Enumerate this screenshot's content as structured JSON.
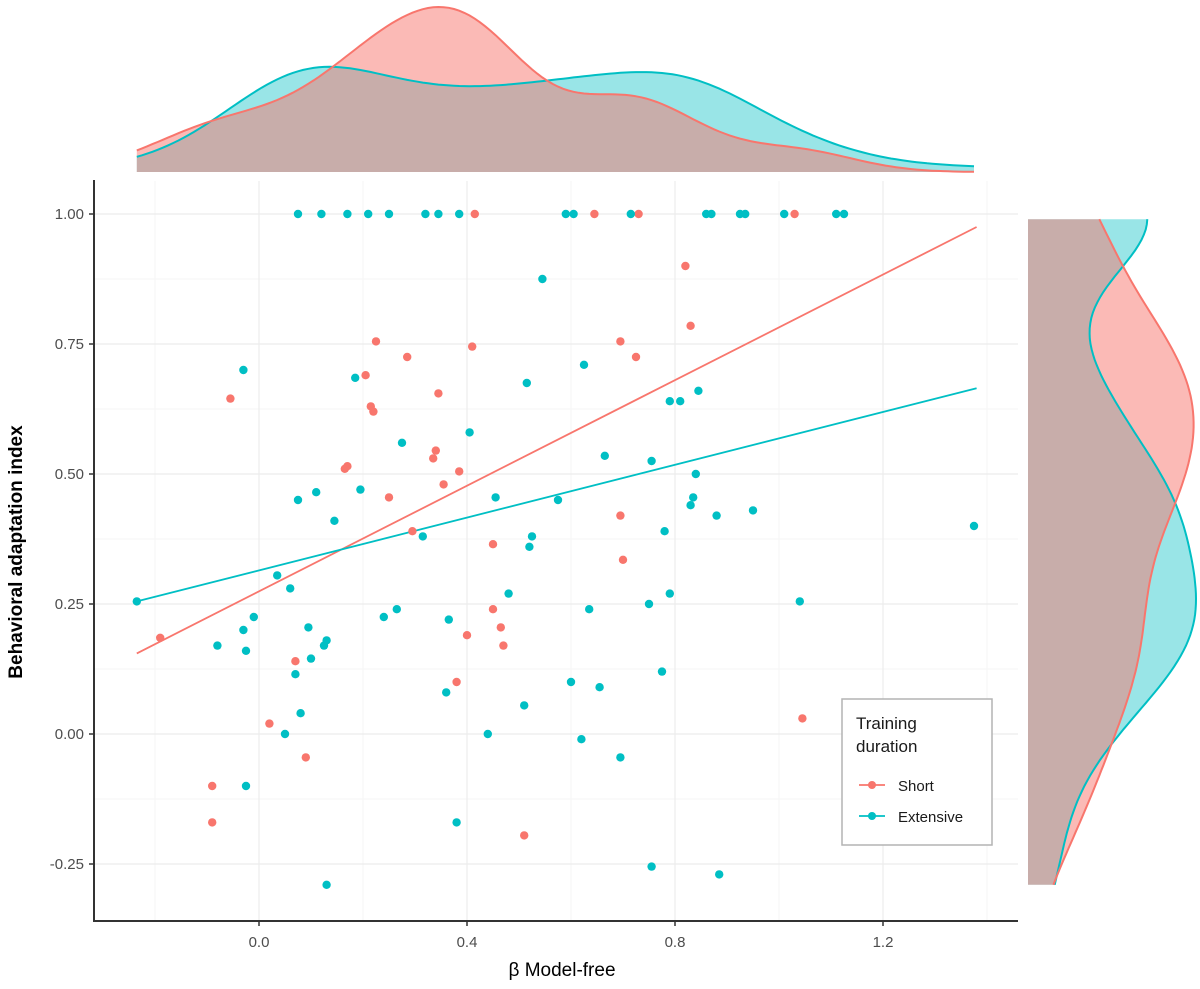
{
  "chart_data": {
    "type": "scatter",
    "title": "",
    "xlabel": "β  Model-free",
    "ylabel": "Behavioral adaptation index",
    "xlim": [
      -0.32,
      1.46
    ],
    "ylim": [
      -0.38,
      1.07
    ],
    "x_ticks": [
      0.0,
      0.4,
      0.8,
      1.2
    ],
    "x_tick_labels": [
      "0.0",
      "0.4",
      "0.8",
      "1.2"
    ],
    "y_ticks": [
      -0.25,
      0.0,
      0.25,
      0.5,
      0.75,
      1.0
    ],
    "y_tick_labels": [
      "-0.25",
      "0.00",
      "0.25",
      "0.50",
      "0.75",
      "1.00"
    ],
    "grid": true,
    "legend": {
      "title": "Training duration",
      "title_lines": [
        "Training",
        "duration"
      ],
      "placement": "bottom-right",
      "entries": [
        {
          "name": "Short",
          "color": "#F8766D"
        },
        {
          "name": "Extensive",
          "color": "#00BFC4"
        }
      ]
    },
    "series": [
      {
        "name": "Short",
        "color": "#F8766D",
        "fit_line": {
          "x": [
            -0.235,
            1.38
          ],
          "y": [
            0.155,
            0.975
          ]
        },
        "points": [
          [
            0.415,
            1.0
          ],
          [
            0.645,
            1.0
          ],
          [
            0.73,
            1.0
          ],
          [
            1.03,
            1.0
          ],
          [
            -0.19,
            0.185
          ],
          [
            -0.055,
            0.645
          ],
          [
            -0.09,
            -0.1
          ],
          [
            -0.09,
            -0.17
          ],
          [
            0.02,
            0.02
          ],
          [
            0.09,
            -0.045
          ],
          [
            0.07,
            0.14
          ],
          [
            0.225,
            0.755
          ],
          [
            0.205,
            0.69
          ],
          [
            0.215,
            0.63
          ],
          [
            0.22,
            0.62
          ],
          [
            0.285,
            0.725
          ],
          [
            0.17,
            0.515
          ],
          [
            0.165,
            0.51
          ],
          [
            0.25,
            0.455
          ],
          [
            0.295,
            0.39
          ],
          [
            0.335,
            0.53
          ],
          [
            0.34,
            0.545
          ],
          [
            0.345,
            0.655
          ],
          [
            0.355,
            0.48
          ],
          [
            0.385,
            0.505
          ],
          [
            0.41,
            0.745
          ],
          [
            0.38,
            0.1
          ],
          [
            0.4,
            0.19
          ],
          [
            0.45,
            0.365
          ],
          [
            0.45,
            0.24
          ],
          [
            0.465,
            0.205
          ],
          [
            0.47,
            0.17
          ],
          [
            0.51,
            -0.195
          ],
          [
            0.695,
            0.755
          ],
          [
            0.725,
            0.725
          ],
          [
            0.695,
            0.42
          ],
          [
            0.7,
            0.335
          ],
          [
            0.82,
            0.9
          ],
          [
            0.83,
            0.785
          ],
          [
            1.045,
            0.03
          ]
        ]
      },
      {
        "name": "Extensive",
        "color": "#00BFC4",
        "fit_line": {
          "x": [
            -0.235,
            1.38
          ],
          "y": [
            0.255,
            0.665
          ]
        },
        "points": [
          [
            0.075,
            1.0
          ],
          [
            0.12,
            1.0
          ],
          [
            0.17,
            1.0
          ],
          [
            0.21,
            1.0
          ],
          [
            0.25,
            1.0
          ],
          [
            0.32,
            1.0
          ],
          [
            0.345,
            1.0
          ],
          [
            0.385,
            1.0
          ],
          [
            0.59,
            1.0
          ],
          [
            0.605,
            1.0
          ],
          [
            0.715,
            1.0
          ],
          [
            0.86,
            1.0
          ],
          [
            0.87,
            1.0
          ],
          [
            0.925,
            1.0
          ],
          [
            0.935,
            1.0
          ],
          [
            1.01,
            1.0
          ],
          [
            1.11,
            1.0
          ],
          [
            1.125,
            1.0
          ],
          [
            -0.235,
            0.255
          ],
          [
            -0.08,
            0.17
          ],
          [
            -0.03,
            0.7
          ],
          [
            -0.03,
            0.2
          ],
          [
            -0.025,
            0.16
          ],
          [
            -0.01,
            0.225
          ],
          [
            -0.025,
            -0.1
          ],
          [
            0.035,
            0.305
          ],
          [
            0.06,
            0.28
          ],
          [
            0.07,
            0.115
          ],
          [
            0.075,
            0.45
          ],
          [
            0.08,
            0.04
          ],
          [
            0.05,
            0.0
          ],
          [
            0.095,
            0.205
          ],
          [
            0.1,
            0.145
          ],
          [
            0.11,
            0.465
          ],
          [
            0.125,
            0.17
          ],
          [
            0.13,
            0.18
          ],
          [
            0.145,
            0.41
          ],
          [
            0.13,
            -0.29
          ],
          [
            0.185,
            0.685
          ],
          [
            0.195,
            0.47
          ],
          [
            0.24,
            0.225
          ],
          [
            0.265,
            0.24
          ],
          [
            0.275,
            0.56
          ],
          [
            0.315,
            0.38
          ],
          [
            0.36,
            0.08
          ],
          [
            0.365,
            0.22
          ],
          [
            0.38,
            -0.17
          ],
          [
            0.405,
            0.58
          ],
          [
            0.44,
            0.0
          ],
          [
            0.455,
            0.455
          ],
          [
            0.48,
            0.27
          ],
          [
            0.51,
            0.055
          ],
          [
            0.515,
            0.675
          ],
          [
            0.52,
            0.36
          ],
          [
            0.525,
            0.38
          ],
          [
            0.545,
            0.875
          ],
          [
            0.575,
            0.45
          ],
          [
            0.6,
            0.1
          ],
          [
            0.62,
            -0.01
          ],
          [
            0.625,
            0.71
          ],
          [
            0.635,
            0.24
          ],
          [
            0.655,
            0.09
          ],
          [
            0.665,
            0.535
          ],
          [
            0.695,
            -0.045
          ],
          [
            0.75,
            0.25
          ],
          [
            0.755,
            0.525
          ],
          [
            0.755,
            -0.255
          ],
          [
            0.775,
            0.12
          ],
          [
            0.78,
            0.39
          ],
          [
            0.79,
            0.64
          ],
          [
            0.79,
            0.27
          ],
          [
            0.81,
            0.64
          ],
          [
            0.83,
            0.44
          ],
          [
            0.835,
            0.455
          ],
          [
            0.84,
            0.5
          ],
          [
            0.845,
            0.66
          ],
          [
            0.88,
            0.42
          ],
          [
            0.885,
            -0.27
          ],
          [
            0.95,
            0.43
          ],
          [
            1.04,
            0.255
          ],
          [
            1.375,
            0.4
          ]
        ]
      }
    ],
    "marginal_density": {
      "top": {
        "axis": "x",
        "series": [
          "Short",
          "Extensive"
        ]
      },
      "right": {
        "axis": "y",
        "series": [
          "Short",
          "Extensive"
        ]
      }
    }
  }
}
